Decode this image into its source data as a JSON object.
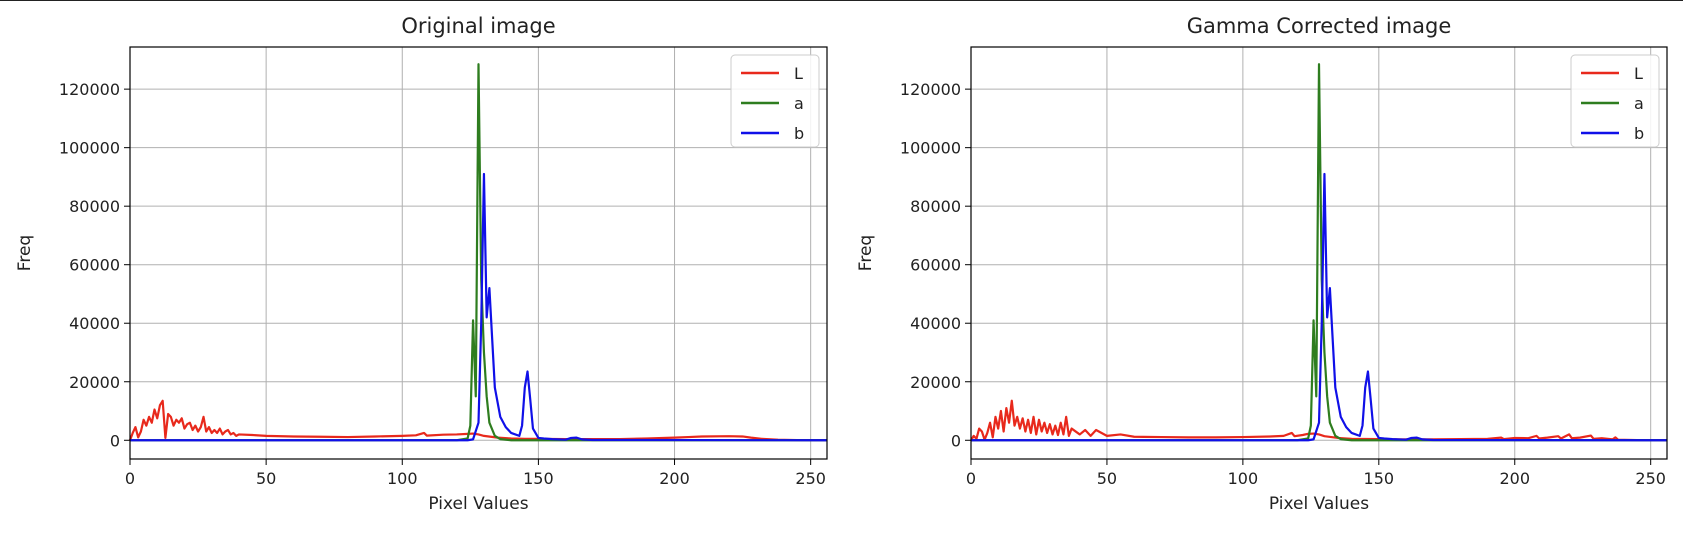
{
  "chart_data": [
    {
      "type": "line",
      "title": "Original image",
      "xlabel": "Pixel Values",
      "ylabel": "Freq",
      "xlim": [
        0,
        256
      ],
      "ylim": [
        -6400,
        134400
      ],
      "xticks": [
        0,
        50,
        100,
        150,
        200,
        250
      ],
      "yticks": [
        0,
        20000,
        40000,
        60000,
        80000,
        100000,
        120000
      ],
      "grid": true,
      "legend": "top-right",
      "series": [
        {
          "name": "L",
          "color": "#e8291c",
          "points": [
            [
              0,
              0
            ],
            [
              1,
              2500
            ],
            [
              2,
              4500
            ],
            [
              3,
              1000
            ],
            [
              4,
              3000
            ],
            [
              5,
              7000
            ],
            [
              6,
              5000
            ],
            [
              7,
              8000
            ],
            [
              8,
              6000
            ],
            [
              9,
              10500
            ],
            [
              10,
              7500
            ],
            [
              11,
              12000
            ],
            [
              12,
              13500
            ],
            [
              13,
              800
            ],
            [
              14,
              9000
            ],
            [
              15,
              8000
            ],
            [
              16,
              5000
            ],
            [
              17,
              7000
            ],
            [
              18,
              6000
            ],
            [
              19,
              7500
            ],
            [
              20,
              4000
            ],
            [
              21,
              5500
            ],
            [
              22,
              6000
            ],
            [
              23,
              3500
            ],
            [
              24,
              5000
            ],
            [
              25,
              3000
            ],
            [
              26,
              4500
            ],
            [
              27,
              8000
            ],
            [
              28,
              3000
            ],
            [
              29,
              4500
            ],
            [
              30,
              2500
            ],
            [
              31,
              3500
            ],
            [
              32,
              2500
            ],
            [
              33,
              4000
            ],
            [
              34,
              2000
            ],
            [
              35,
              3000
            ],
            [
              36,
              3500
            ],
            [
              37,
              2000
            ],
            [
              38,
              2500
            ],
            [
              39,
              1500
            ],
            [
              40,
              2000
            ],
            [
              45,
              1800
            ],
            [
              50,
              1500
            ],
            [
              60,
              1300
            ],
            [
              70,
              1200
            ],
            [
              80,
              1100
            ],
            [
              90,
              1300
            ],
            [
              100,
              1500
            ],
            [
              105,
              1700
            ],
            [
              108,
              2500
            ],
            [
              109,
              1600
            ],
            [
              115,
              1900
            ],
            [
              120,
              2000
            ],
            [
              124,
              2200
            ],
            [
              126,
              2300
            ],
            [
              128,
              2000
            ],
            [
              130,
              1500
            ],
            [
              135,
              900
            ],
            [
              140,
              600
            ],
            [
              145,
              500
            ],
            [
              150,
              500
            ],
            [
              160,
              400
            ],
            [
              170,
              400
            ],
            [
              180,
              400
            ],
            [
              190,
              600
            ],
            [
              200,
              900
            ],
            [
              205,
              1100
            ],
            [
              210,
              1300
            ],
            [
              220,
              1400
            ],
            [
              225,
              1300
            ],
            [
              228,
              900
            ],
            [
              232,
              500
            ],
            [
              238,
              200
            ],
            [
              245,
              50
            ],
            [
              256,
              0
            ]
          ]
        },
        {
          "name": "a",
          "color": "#2e7d1f",
          "points": [
            [
              0,
              0
            ],
            [
              120,
              0
            ],
            [
              124,
              600
            ],
            [
              125,
              5000
            ],
            [
              126,
              41000
            ],
            [
              127,
              15000
            ],
            [
              128,
              128500
            ],
            [
              129,
              55000
            ],
            [
              130,
              30000
            ],
            [
              131,
              15000
            ],
            [
              132,
              6000
            ],
            [
              134,
              1500
            ],
            [
              136,
              400
            ],
            [
              140,
              0
            ],
            [
              256,
              0
            ]
          ]
        },
        {
          "name": "b",
          "color": "#1010e8",
          "points": [
            [
              0,
              0
            ],
            [
              124,
              0
            ],
            [
              126,
              300
            ],
            [
              128,
              6000
            ],
            [
              129,
              40000
            ],
            [
              130,
              91000
            ],
            [
              131,
              42000
            ],
            [
              132,
              52000
            ],
            [
              133,
              35000
            ],
            [
              134,
              18000
            ],
            [
              135,
              13000
            ],
            [
              136,
              8000
            ],
            [
              138,
              4500
            ],
            [
              140,
              2500
            ],
            [
              143,
              1500
            ],
            [
              144,
              5000
            ],
            [
              145,
              18000
            ],
            [
              146,
              23500
            ],
            [
              147,
              14000
            ],
            [
              148,
              4000
            ],
            [
              150,
              800
            ],
            [
              152,
              600
            ],
            [
              155,
              400
            ],
            [
              160,
              200
            ],
            [
              162,
              800
            ],
            [
              164,
              900
            ],
            [
              166,
              300
            ],
            [
              170,
              100
            ],
            [
              256,
              0
            ]
          ]
        }
      ]
    },
    {
      "type": "line",
      "title": "Gamma Corrected image",
      "xlabel": "Pixel Values",
      "ylabel": "Freq",
      "xlim": [
        0,
        256
      ],
      "ylim": [
        -6400,
        134400
      ],
      "xticks": [
        0,
        50,
        100,
        150,
        200,
        250
      ],
      "yticks": [
        0,
        20000,
        40000,
        60000,
        80000,
        100000,
        120000
      ],
      "grid": true,
      "legend": "top-right",
      "series": [
        {
          "name": "L",
          "color": "#e8291c",
          "points": [
            [
              0,
              0
            ],
            [
              1,
              1500
            ],
            [
              2,
              500
            ],
            [
              3,
              4000
            ],
            [
              4,
              3000
            ],
            [
              5,
              200
            ],
            [
              6,
              2500
            ],
            [
              7,
              6000
            ],
            [
              8,
              1000
            ],
            [
              9,
              8000
            ],
            [
              10,
              4000
            ],
            [
              11,
              10000
            ],
            [
              12,
              3000
            ],
            [
              13,
              11000
            ],
            [
              14,
              6000
            ],
            [
              15,
              13500
            ],
            [
              16,
              5000
            ],
            [
              17,
              8000
            ],
            [
              18,
              4000
            ],
            [
              19,
              7500
            ],
            [
              20,
              3000
            ],
            [
              21,
              7000
            ],
            [
              22,
              2500
            ],
            [
              23,
              8000
            ],
            [
              24,
              2000
            ],
            [
              25,
              7000
            ],
            [
              26,
              3000
            ],
            [
              27,
              6000
            ],
            [
              28,
              2500
            ],
            [
              29,
              5500
            ],
            [
              30,
              2000
            ],
            [
              31,
              5000
            ],
            [
              32,
              1800
            ],
            [
              33,
              6000
            ],
            [
              34,
              2000
            ],
            [
              35,
              8000
            ],
            [
              36,
              1500
            ],
            [
              37,
              4000
            ],
            [
              40,
              2000
            ],
            [
              42,
              3500
            ],
            [
              44,
              1500
            ],
            [
              46,
              3500
            ],
            [
              50,
              1500
            ],
            [
              55,
              2000
            ],
            [
              60,
              1200
            ],
            [
              70,
              1100
            ],
            [
              80,
              1000
            ],
            [
              90,
              1000
            ],
            [
              100,
              1100
            ],
            [
              110,
              1300
            ],
            [
              115,
              1500
            ],
            [
              118,
              2500
            ],
            [
              119,
              1400
            ],
            [
              122,
              1800
            ],
            [
              124,
              2200
            ],
            [
              126,
              2300
            ],
            [
              128,
              2000
            ],
            [
              130,
              1400
            ],
            [
              135,
              800
            ],
            [
              140,
              500
            ],
            [
              150,
              400
            ],
            [
              160,
              300
            ],
            [
              170,
              300
            ],
            [
              180,
              400
            ],
            [
              190,
              500
            ],
            [
              195,
              900
            ],
            [
              196,
              400
            ],
            [
              200,
              800
            ],
            [
              205,
              700
            ],
            [
              208,
              1500
            ],
            [
              209,
              600
            ],
            [
              212,
              900
            ],
            [
              216,
              1400
            ],
            [
              217,
              600
            ],
            [
              220,
              2000
            ],
            [
              221,
              700
            ],
            [
              224,
              900
            ],
            [
              228,
              1600
            ],
            [
              229,
              500
            ],
            [
              232,
              700
            ],
            [
              236,
              300
            ],
            [
              237,
              1000
            ],
            [
              238,
              200
            ],
            [
              245,
              50
            ],
            [
              256,
              0
            ]
          ]
        },
        {
          "name": "a",
          "color": "#2e7d1f",
          "points": [
            [
              0,
              0
            ],
            [
              120,
              0
            ],
            [
              124,
              600
            ],
            [
              125,
              5000
            ],
            [
              126,
              41000
            ],
            [
              127,
              15000
            ],
            [
              128,
              128500
            ],
            [
              129,
              55000
            ],
            [
              130,
              30000
            ],
            [
              131,
              15000
            ],
            [
              132,
              6000
            ],
            [
              134,
              1500
            ],
            [
              136,
              400
            ],
            [
              140,
              0
            ],
            [
              256,
              0
            ]
          ]
        },
        {
          "name": "b",
          "color": "#1010e8",
          "points": [
            [
              0,
              0
            ],
            [
              124,
              0
            ],
            [
              126,
              300
            ],
            [
              128,
              6000
            ],
            [
              129,
              40000
            ],
            [
              130,
              91000
            ],
            [
              131,
              42000
            ],
            [
              132,
              52000
            ],
            [
              133,
              35000
            ],
            [
              134,
              18000
            ],
            [
              135,
              13000
            ],
            [
              136,
              8000
            ],
            [
              138,
              4500
            ],
            [
              140,
              2500
            ],
            [
              143,
              1500
            ],
            [
              144,
              5000
            ],
            [
              145,
              18000
            ],
            [
              146,
              23500
            ],
            [
              147,
              14000
            ],
            [
              148,
              4000
            ],
            [
              150,
              800
            ],
            [
              152,
              600
            ],
            [
              155,
              400
            ],
            [
              160,
              200
            ],
            [
              162,
              800
            ],
            [
              164,
              900
            ],
            [
              166,
              300
            ],
            [
              170,
              100
            ],
            [
              256,
              0
            ]
          ]
        }
      ]
    }
  ]
}
